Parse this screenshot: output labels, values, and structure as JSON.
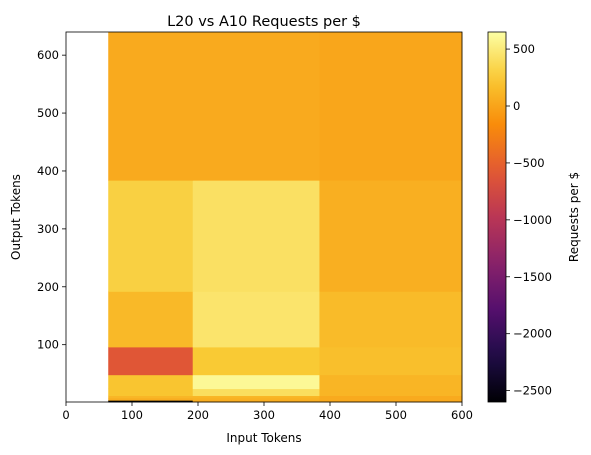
{
  "chart_data": {
    "type": "heatmap",
    "title": "L20 vs A10 Requests per $",
    "xlabel": "Input Tokens",
    "ylabel": "Output Tokens",
    "xlim": [
      0,
      600
    ],
    "ylim": [
      1,
      640
    ],
    "xticks": [
      "0",
      "100",
      "200",
      "300",
      "400",
      "500",
      "600"
    ],
    "yticks": [
      "100",
      "200",
      "300",
      "400",
      "500",
      "600"
    ],
    "x_edges": [
      64,
      192,
      384,
      600
    ],
    "y_edges": [
      1,
      4,
      8,
      12,
      24,
      48,
      96,
      192,
      384,
      640
    ],
    "values": [
      [
        -2600,
        30,
        25
      ],
      [
        60,
        80,
        40
      ],
      [
        120,
        110,
        40
      ],
      [
        220,
        400,
        110
      ],
      [
        220,
        600,
        110
      ],
      [
        -600,
        250,
        180
      ],
      [
        140,
        450,
        150
      ],
      [
        300,
        420,
        70
      ],
      [
        40,
        40,
        10
      ]
    ],
    "colorbar": {
      "label": "Requests per $",
      "range": [
        -2600,
        650
      ],
      "ticks": [
        "500",
        "0",
        "−500",
        "−1000",
        "−1500",
        "−2000",
        "−2500"
      ],
      "colormap": "inferno"
    }
  }
}
